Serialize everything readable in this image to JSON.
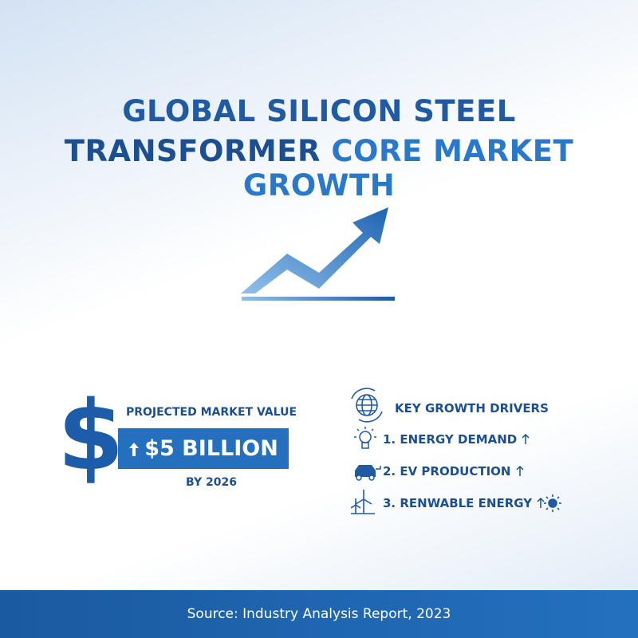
{
  "header": {
    "title_line1": "GLOBAL SILICON STEEL",
    "title_line2_dark": "TRANSFORMER",
    "title_line2_light": "CORE MARKET GROWTH"
  },
  "projection": {
    "symbol": "$",
    "label": "PROJECTED MARKET VALUE",
    "value": "$5 BILLION",
    "year": "BY 2026"
  },
  "drivers": {
    "title": "KEY GROWTH DRIVERS",
    "items": [
      "1. ENERGY DEMAND",
      "2. EV PRODUCTION",
      "3. RENWABLE ENERGY"
    ]
  },
  "footer": {
    "source": "Source: Industry Analysis Report, 2023"
  }
}
